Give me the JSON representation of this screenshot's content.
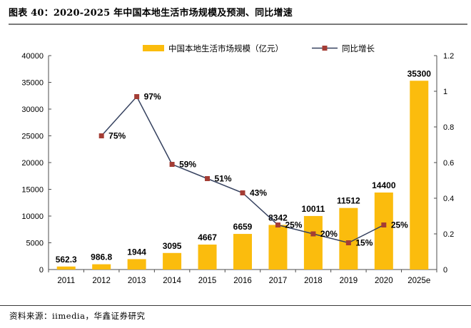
{
  "header": {
    "title": "图表 40：2020-2025 年中国本地生活市场规模及预测、同比增速"
  },
  "footer": {
    "source_label": "资料来源：iimedia，华鑫证券研究"
  },
  "colors": {
    "bar": "#FBBC0D",
    "line": "#35415F",
    "marker": "#A43D35",
    "axis": "#4D4D4D",
    "text": "#000000"
  },
  "chart_data": {
    "type": "bar+line combo",
    "categories": [
      "2011",
      "2012",
      "2013",
      "2014",
      "2015",
      "2016",
      "2017",
      "2018",
      "2019",
      "2020",
      "2025e"
    ],
    "series": [
      {
        "name": "中国本地生活市场规模（亿元）",
        "type": "bar",
        "axis": "left",
        "values": [
          562.3,
          986.8,
          1944,
          3095,
          4667,
          6659,
          8342,
          10011,
          11512,
          14400,
          35300
        ],
        "labels": [
          "562.3",
          "986.8",
          "1944",
          "3095",
          "4667",
          "6659",
          "8342",
          "10011",
          "11512",
          "14400",
          "35300"
        ]
      },
      {
        "name": "同比增长",
        "type": "line",
        "axis": "right",
        "values": [
          null,
          0.75,
          0.97,
          0.59,
          0.51,
          0.43,
          0.25,
          0.2,
          0.15,
          0.25,
          null
        ],
        "labels": [
          null,
          "75%",
          "97%",
          "59%",
          "51%",
          "43%",
          "25%",
          "20%",
          "15%",
          "25%",
          null
        ]
      }
    ],
    "left_axis": {
      "min": 0,
      "max": 40000,
      "step": 5000,
      "ticks": [
        "0",
        "5000",
        "10000",
        "15000",
        "20000",
        "25000",
        "30000",
        "35000",
        "40000"
      ]
    },
    "right_axis": {
      "min": 0,
      "max": 1.2,
      "step": 0.2,
      "ticks": [
        "0",
        "0.2",
        "0.4",
        "0.6",
        "0.8",
        "1",
        "1.2"
      ]
    },
    "grid": false,
    "legend_position": "top"
  }
}
